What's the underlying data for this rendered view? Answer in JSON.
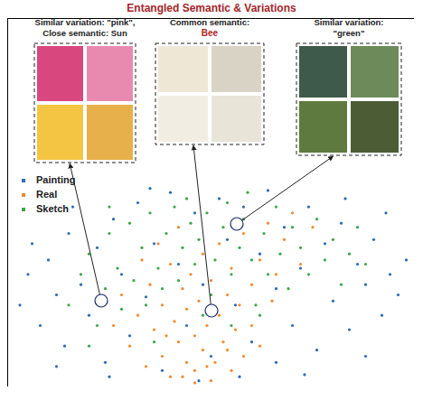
{
  "chart_data": {
    "type": "scatter",
    "title": "Entangled Semantic & Variations",
    "tick_labels": false,
    "legend": "top-left",
    "xlim": [
      0,
      100
    ],
    "ylim": [
      0,
      180
    ],
    "xticks": [],
    "yticks": [],
    "annotations": [
      {
        "lines": [
          "Similar variation: \"pink\",",
          "Close semantic: Sun"
        ],
        "highlight": []
      },
      {
        "lines": [
          "Common semantic:"
        ],
        "highlight": [
          "Bee"
        ]
      },
      {
        "lines": [
          "Similar variation:",
          "\"green\""
        ],
        "highlight": []
      }
    ],
    "series": [
      {
        "name": "Painting",
        "color": "#2b6cb3",
        "marker": "circle",
        "x": [
          3,
          5,
          8,
          10,
          12,
          14,
          15,
          18,
          20,
          22,
          24,
          26,
          28,
          30,
          32,
          34,
          36,
          38,
          40,
          42,
          44,
          46,
          48,
          50,
          52,
          54,
          56,
          58,
          60,
          62,
          64,
          66,
          68,
          70,
          72,
          74,
          76,
          78,
          80,
          82,
          84,
          86,
          88,
          90,
          92,
          94,
          96,
          98,
          6,
          16,
          25,
          35,
          57,
          73,
          88,
          93,
          12,
          47,
          66,
          83
        ],
        "y": [
          40,
          55,
          30,
          62,
          45,
          20,
          75,
          50,
          35,
          68,
          12,
          82,
          55,
          25,
          90,
          44,
          70,
          8,
          95,
          60,
          30,
          85,
          50,
          15,
          92,
          72,
          40,
          88,
          22,
          65,
          96,
          48,
          78,
          30,
          58,
          88,
          18,
          70,
          42,
          80,
          28,
          60,
          50,
          72,
          35,
          55,
          45,
          62,
          70,
          88,
          5,
          97,
          5,
          6,
          15,
          85,
          10,
          3,
          12,
          92
        ]
      },
      {
        "name": "Real",
        "color": "#f28a2e",
        "marker": "circle",
        "x": [
          30,
          32,
          34,
          35,
          36,
          38,
          38,
          40,
          40,
          41,
          42,
          43,
          44,
          44,
          45,
          46,
          46,
          47,
          48,
          48,
          49,
          50,
          50,
          51,
          52,
          52,
          53,
          54,
          55,
          55,
          56,
          57,
          58,
          58,
          60,
          60,
          62,
          62,
          64,
          65,
          66,
          68,
          70,
          28,
          26,
          33,
          37,
          42,
          72,
          75,
          46,
          49,
          43,
          39,
          54
        ],
        "y": [
          20,
          35,
          10,
          50,
          28,
          40,
          15,
          60,
          5,
          32,
          22,
          48,
          12,
          38,
          55,
          25,
          8,
          42,
          18,
          65,
          30,
          52,
          3,
          12,
          35,
          70,
          22,
          45,
          8,
          58,
          28,
          40,
          15,
          75,
          50,
          30,
          62,
          20,
          80,
          42,
          55,
          72,
          85,
          45,
          30,
          62,
          70,
          78,
          60,
          78,
          2,
          10,
          5,
          25,
          18
        ]
      },
      {
        "name": "Sketch",
        "color": "#3aa845",
        "marker": "circle",
        "x": [
          15,
          18,
          20,
          22,
          24,
          25,
          27,
          28,
          30,
          31,
          33,
          34,
          35,
          37,
          38,
          39,
          41,
          42,
          43,
          45,
          46,
          47,
          49,
          50,
          51,
          53,
          54,
          55,
          57,
          58,
          60,
          61,
          63,
          64,
          66,
          67,
          69,
          70,
          72,
          74,
          76,
          78,
          80,
          82,
          84,
          86,
          55,
          62,
          48,
          36,
          20,
          88,
          44,
          59,
          25
        ],
        "y": [
          40,
          55,
          65,
          30,
          48,
          75,
          58,
          38,
          80,
          52,
          68,
          40,
          85,
          58,
          48,
          75,
          88,
          52,
          68,
          80,
          60,
          72,
          85,
          45,
          62,
          78,
          90,
          55,
          68,
          82,
          62,
          40,
          75,
          55,
          88,
          65,
          48,
          78,
          68,
          55,
          82,
          62,
          72,
          50,
          65,
          78,
          30,
          35,
          35,
          22,
          20,
          60,
          92,
          95,
          88
        ]
      }
    ]
  }
}
